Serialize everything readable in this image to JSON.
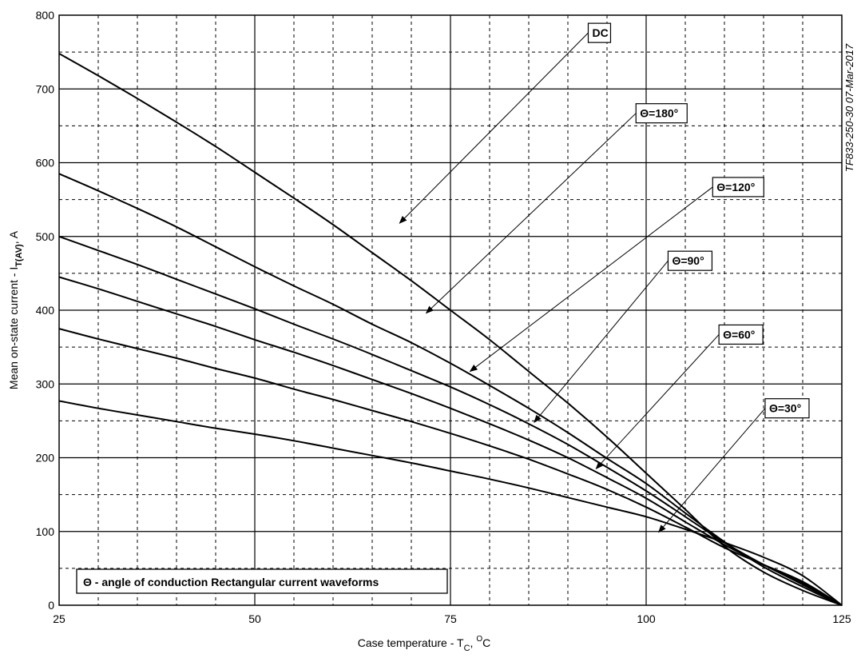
{
  "chart_data": {
    "type": "line",
    "xlabel_main": "Case temperature - T",
    "xlabel_sub": "C",
    "xlabel_tail": ", ",
    "xlabel_unit_sup": "O",
    "xlabel_unit": "C",
    "ylabel_main": "Mean on-state current - I",
    "ylabel_sub": "T(AV)",
    "ylabel_tail": ", A",
    "xlim": [
      25,
      125
    ],
    "ylim": [
      0,
      800
    ],
    "x_ticks": [
      25,
      50,
      75,
      100,
      125
    ],
    "y_ticks": [
      0,
      100,
      200,
      300,
      400,
      500,
      600,
      700,
      800
    ],
    "x_minor_step": 5,
    "y_minor_step": 50,
    "grid": true,
    "legend_note": "Θ - angle of conduction Rectangular current waveforms",
    "stamp": "TF833-250-30  07-Mar-2017",
    "series": [
      {
        "name": "DC",
        "x": [
          25,
          30,
          35,
          40,
          45,
          50,
          55,
          60,
          65,
          70,
          75,
          80,
          85,
          90,
          95,
          100,
          105,
          110,
          115,
          120,
          125
        ],
        "y": [
          748,
          718,
          687,
          655,
          622,
          587,
          552,
          516,
          478,
          440,
          400,
          360,
          317,
          274,
          228,
          179,
          130,
          80,
          45,
          20,
          0
        ]
      },
      {
        "name": "Θ=180°",
        "x": [
          25,
          30,
          35,
          40,
          45,
          50,
          55,
          60,
          65,
          70,
          75,
          80,
          85,
          90,
          95,
          100,
          105,
          110,
          115,
          120,
          125
        ],
        "y": [
          585,
          562,
          538,
          513,
          486,
          459,
          433,
          408,
          381,
          356,
          328,
          298,
          267,
          234,
          199,
          165,
          125,
          86,
          52,
          25,
          0
        ]
      },
      {
        "name": "Θ=120°",
        "x": [
          25,
          30,
          35,
          40,
          45,
          50,
          55,
          60,
          65,
          70,
          75,
          80,
          85,
          90,
          95,
          100,
          105,
          110,
          115,
          120,
          125
        ],
        "y": [
          500,
          481,
          462,
          442,
          422,
          402,
          381,
          361,
          340,
          318,
          296,
          272,
          246,
          218,
          187,
          155,
          120,
          85,
          55,
          28,
          0
        ]
      },
      {
        "name": "Θ=90°",
        "x": [
          25,
          30,
          35,
          40,
          45,
          50,
          55,
          60,
          65,
          70,
          75,
          80,
          85,
          90,
          95,
          100,
          105,
          110,
          115,
          120,
          125
        ],
        "y": [
          445,
          429,
          412,
          395,
          378,
          360,
          343,
          325,
          306,
          287,
          267,
          246,
          224,
          200,
          173,
          145,
          113,
          82,
          55,
          30,
          0
        ]
      },
      {
        "name": "Θ=60°",
        "x": [
          25,
          30,
          35,
          40,
          45,
          50,
          55,
          60,
          65,
          70,
          75,
          80,
          85,
          90,
          95,
          100,
          105,
          110,
          115,
          120,
          125
        ],
        "y": [
          375,
          361,
          348,
          335,
          321,
          308,
          293,
          279,
          264,
          249,
          233,
          216,
          198,
          178,
          157,
          133,
          106,
          78,
          55,
          32,
          0
        ]
      },
      {
        "name": "Θ=30°",
        "x": [
          25,
          30,
          35,
          40,
          45,
          50,
          55,
          60,
          65,
          70,
          75,
          80,
          85,
          90,
          95,
          100,
          105,
          110,
          115,
          120,
          125
        ],
        "y": [
          277,
          267,
          258,
          249,
          240,
          232,
          223,
          213,
          203,
          193,
          182,
          171,
          159,
          146,
          133,
          120,
          103,
          85,
          65,
          40,
          0
        ]
      }
    ],
    "annotations": [
      {
        "label": "DC",
        "box_x": 92.6,
        "box_y": 776,
        "arrow_x": 68.5,
        "arrow_y": 518
      },
      {
        "label": "Θ=180°",
        "box_x": 98.7,
        "box_y": 667,
        "arrow_x": 71.9,
        "arrow_y": 396
      },
      {
        "label": "Θ=120°",
        "box_x": 108.5,
        "box_y": 567,
        "arrow_x": 77.5,
        "arrow_y": 317
      },
      {
        "label": "Θ=90°",
        "box_x": 102.8,
        "box_y": 467,
        "arrow_x": 85.7,
        "arrow_y": 248
      },
      {
        "label": "Θ=60°",
        "box_x": 109.3,
        "box_y": 367,
        "arrow_x": 93.6,
        "arrow_y": 185
      },
      {
        "label": "Θ=30°",
        "box_x": 115.2,
        "box_y": 267,
        "arrow_x": 101.6,
        "arrow_y": 99
      }
    ]
  }
}
